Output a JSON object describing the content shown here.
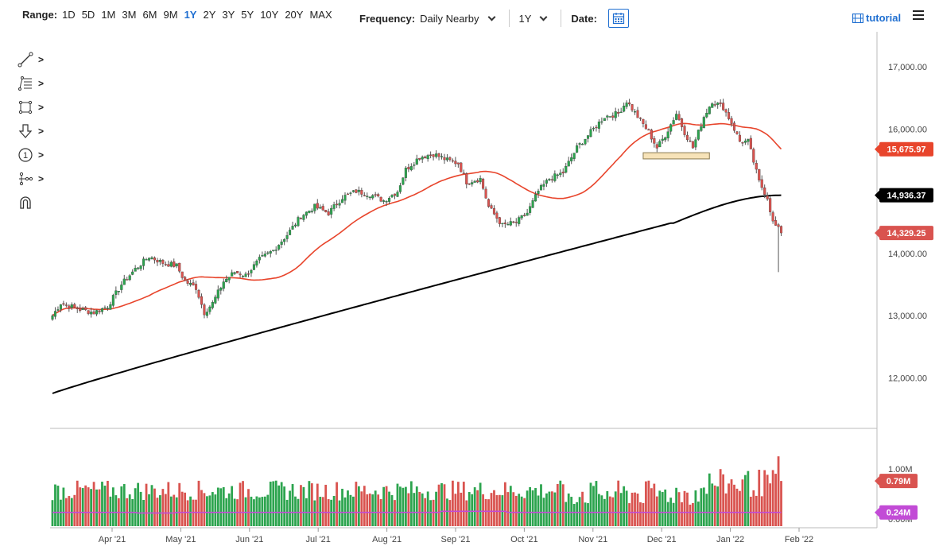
{
  "toolbar": {
    "range_label": "Range:",
    "ranges": [
      "1D",
      "5D",
      "1M",
      "3M",
      "6M",
      "9M",
      "1Y",
      "2Y",
      "3Y",
      "5Y",
      "10Y",
      "20Y",
      "MAX"
    ],
    "active_range": "1Y",
    "frequency_label": "Frequency:",
    "frequency_value": "Daily Nearby",
    "period_value": "1Y",
    "date_label": "Date:",
    "tutorial_label": "tutorial"
  },
  "tools": [
    {
      "icon": "line-tool-icon"
    },
    {
      "icon": "fib-retracement-icon"
    },
    {
      "icon": "rectangle-icon"
    },
    {
      "icon": "arrow-down-icon"
    },
    {
      "icon": "number-marker-icon"
    },
    {
      "icon": "measure-icon"
    },
    {
      "icon": "magnet-icon"
    }
  ],
  "colors": {
    "up": "#2ca44e",
    "down": "#d9534f",
    "ma_short": "#e8452c",
    "ma_long": "#000000",
    "volume_ma": "#c24bd6",
    "highlight": "#f7e3b8"
  },
  "chart_data": {
    "type": "candlestick",
    "xlabels": [
      "Apr '21",
      "May '21",
      "Jun '21",
      "Jul '21",
      "Aug '21",
      "Sep '21",
      "Oct '21",
      "Nov '21",
      "Dec '21",
      "Jan '22",
      "Feb '22"
    ],
    "ylim": [
      11200,
      17500
    ],
    "yticks": [
      "17,000.00",
      "16,000.00",
      "15,000.00",
      "14,000.00",
      "13,000.00",
      "12,000.00"
    ],
    "ytick_values": [
      17000,
      16000,
      15000,
      14000,
      13000,
      12000
    ],
    "price_anchors": [
      [
        0,
        13000
      ],
      [
        3,
        13200
      ],
      [
        10,
        13100
      ],
      [
        15,
        13050
      ],
      [
        20,
        13150
      ],
      [
        25,
        13500
      ],
      [
        30,
        13750
      ],
      [
        35,
        13950
      ],
      [
        40,
        13850
      ],
      [
        45,
        13800
      ],
      [
        48,
        13550
      ],
      [
        52,
        13450
      ],
      [
        55,
        13050
      ],
      [
        58,
        13200
      ],
      [
        62,
        13550
      ],
      [
        66,
        13700
      ],
      [
        70,
        13650
      ],
      [
        75,
        13900
      ],
      [
        80,
        14050
      ],
      [
        85,
        14300
      ],
      [
        90,
        14600
      ],
      [
        95,
        14750
      ],
      [
        100,
        14650
      ],
      [
        105,
        14900
      ],
      [
        110,
        15000
      ],
      [
        115,
        14950
      ],
      [
        120,
        14850
      ],
      [
        125,
        15000
      ],
      [
        128,
        15350
      ],
      [
        133,
        15550
      ],
      [
        138,
        15600
      ],
      [
        143,
        15500
      ],
      [
        147,
        15450
      ],
      [
        150,
        15150
      ],
      [
        155,
        15200
      ],
      [
        158,
        14750
      ],
      [
        163,
        14450
      ],
      [
        168,
        14500
      ],
      [
        172,
        14650
      ],
      [
        176,
        15000
      ],
      [
        180,
        15200
      ],
      [
        185,
        15300
      ],
      [
        190,
        15700
      ],
      [
        195,
        15950
      ],
      [
        200,
        16200
      ],
      [
        205,
        16250
      ],
      [
        208,
        16450
      ],
      [
        212,
        16200
      ],
      [
        216,
        15950
      ],
      [
        219,
        15700
      ],
      [
        222,
        15900
      ],
      [
        226,
        16250
      ],
      [
        229,
        15950
      ],
      [
        232,
        15700
      ],
      [
        236,
        16200
      ],
      [
        239,
        16450
      ],
      [
        243,
        16350
      ],
      [
        246,
        16100
      ],
      [
        249,
        15800
      ],
      [
        252,
        15800
      ],
      [
        256,
        15150
      ],
      [
        259,
        14900
      ],
      [
        261,
        14500
      ],
      [
        264,
        14330
      ]
    ],
    "last_price": "14,329.25",
    "ma_short_value": "15,675.97",
    "ma_long_value": "14,936.37",
    "volume_yticks": [
      "1.00M",
      "0.00M"
    ],
    "volume_last": "0.79M",
    "volume_ma_value": "0.24M"
  }
}
